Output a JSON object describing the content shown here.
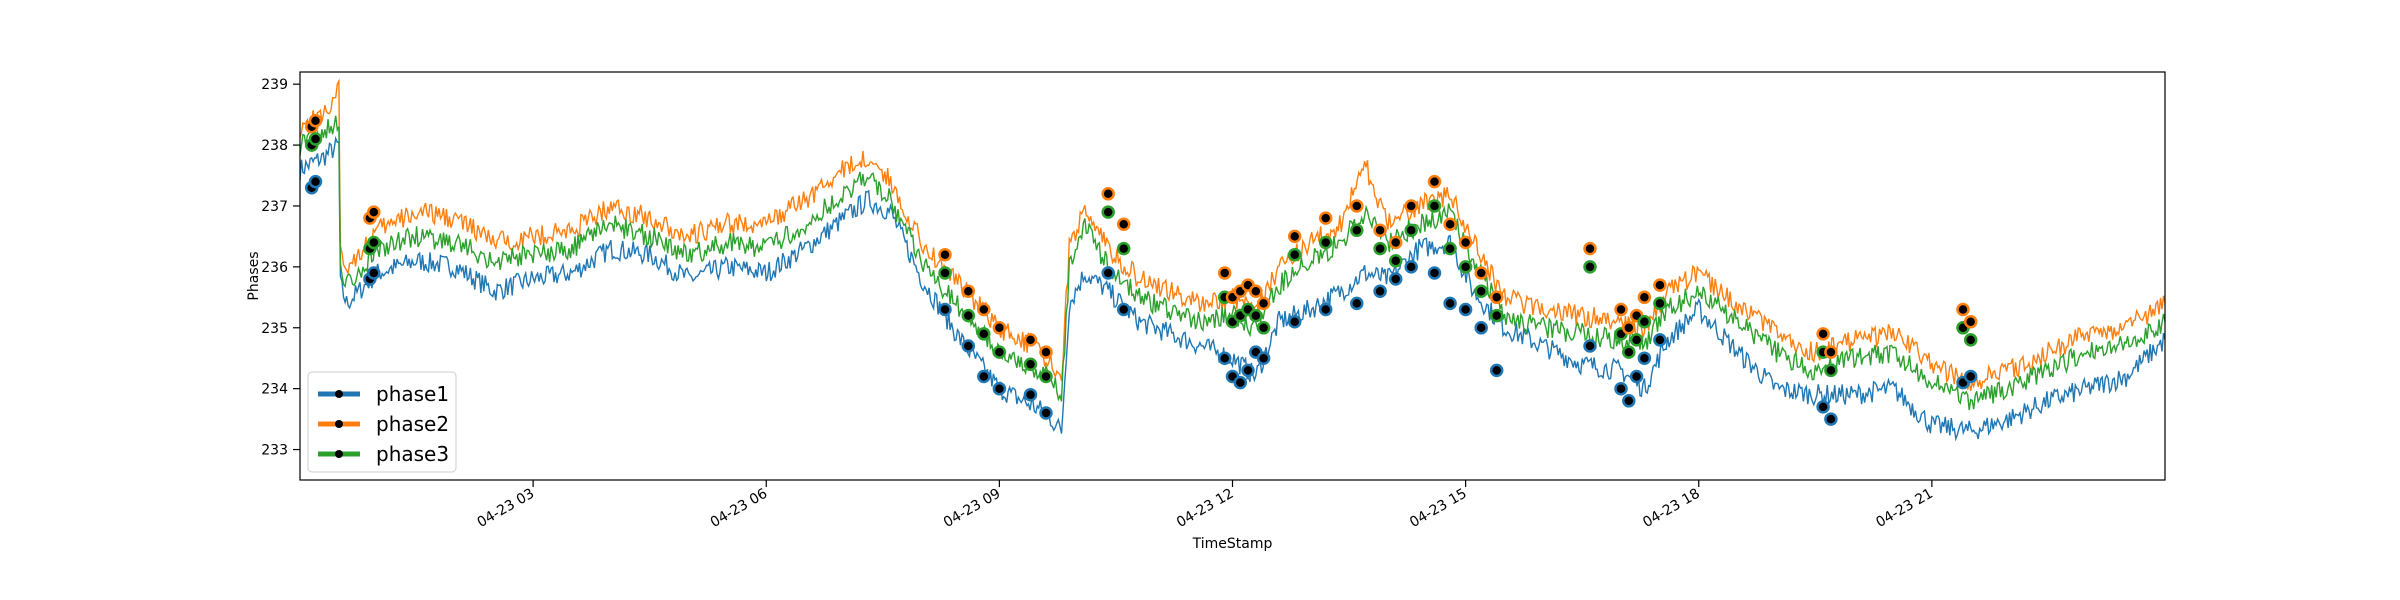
{
  "chart_data": {
    "type": "line",
    "title": "",
    "xlabel": "TimeStamp",
    "ylabel": "Phases",
    "ylim": [
      232.5,
      239.2
    ],
    "xlim_hours": [
      0,
      24
    ],
    "x_tick_labels": [
      "04-23 03",
      "04-23 06",
      "04-23 09",
      "04-23 12",
      "04-23 15",
      "04-23 18",
      "04-23 21"
    ],
    "x_tick_hours": [
      3,
      6,
      9,
      12,
      15,
      18,
      21
    ],
    "y_ticks": [
      233,
      234,
      235,
      236,
      237,
      238,
      239
    ],
    "legend_position": "lower-left",
    "grid": false,
    "series": [
      {
        "name": "phase1",
        "color": "#1f77b4",
        "x_hours": [
          0.0,
          0.3,
          0.5,
          0.52,
          0.6,
          1.0,
          1.5,
          2.0,
          2.5,
          3.0,
          3.5,
          4.0,
          4.5,
          5.0,
          5.5,
          6.0,
          6.5,
          7.0,
          7.3,
          7.6,
          8.0,
          8.5,
          9.0,
          9.3,
          9.6,
          9.8,
          9.9,
          10.1,
          10.4,
          10.8,
          11.2,
          11.6,
          12.0,
          12.3,
          12.6,
          13.0,
          13.4,
          13.7,
          14.0,
          14.4,
          14.8,
          15.1,
          15.5,
          16.0,
          16.5,
          17.0,
          17.3,
          17.6,
          18.0,
          18.5,
          19.0,
          19.5,
          20.0,
          20.5,
          21.0,
          21.5,
          22.0,
          22.5,
          23.0,
          23.5,
          24.0
        ],
        "values": [
          237.6,
          237.8,
          238.0,
          235.7,
          235.4,
          235.9,
          236.1,
          236.0,
          235.6,
          235.8,
          235.9,
          236.3,
          236.2,
          235.8,
          236.0,
          235.9,
          236.3,
          236.8,
          237.1,
          236.9,
          235.8,
          234.8,
          234.0,
          233.8,
          233.6,
          233.3,
          235.4,
          235.9,
          235.6,
          235.1,
          234.9,
          234.7,
          234.5,
          234.2,
          235.1,
          235.3,
          235.6,
          235.9,
          235.8,
          236.3,
          236.4,
          235.6,
          235.0,
          234.7,
          234.4,
          234.3,
          234.0,
          234.8,
          235.3,
          234.6,
          234.0,
          233.9,
          233.9,
          234.0,
          233.4,
          233.3,
          233.5,
          233.8,
          234.0,
          234.2,
          234.8
        ]
      },
      {
        "name": "phase2",
        "color": "#ff7f0e",
        "x_hours": [
          0.0,
          0.3,
          0.5,
          0.52,
          0.6,
          1.0,
          1.5,
          2.0,
          2.5,
          3.0,
          3.5,
          4.0,
          4.5,
          5.0,
          5.5,
          6.0,
          6.5,
          7.0,
          7.3,
          7.6,
          8.0,
          8.5,
          9.0,
          9.3,
          9.6,
          9.8,
          9.9,
          10.1,
          10.4,
          10.8,
          11.2,
          11.6,
          12.0,
          12.3,
          12.6,
          13.0,
          13.4,
          13.7,
          14.0,
          14.4,
          14.8,
          15.1,
          15.5,
          16.0,
          16.5,
          17.0,
          17.3,
          17.6,
          18.0,
          18.5,
          19.0,
          19.5,
          20.0,
          20.5,
          21.0,
          21.5,
          22.0,
          22.5,
          23.0,
          23.5,
          24.0
        ],
        "values": [
          238.3,
          238.5,
          238.9,
          236.2,
          236.0,
          236.6,
          236.9,
          236.8,
          236.4,
          236.5,
          236.6,
          237.0,
          236.8,
          236.5,
          236.7,
          236.7,
          237.1,
          237.6,
          237.8,
          237.4,
          236.4,
          235.7,
          235.0,
          234.8,
          234.5,
          234.2,
          236.3,
          237.0,
          236.3,
          235.8,
          235.6,
          235.4,
          235.5,
          235.3,
          236.0,
          236.4,
          236.7,
          237.7,
          236.7,
          237.0,
          237.2,
          236.4,
          235.5,
          235.3,
          235.2,
          235.1,
          235.0,
          235.6,
          235.9,
          235.4,
          234.9,
          234.6,
          234.8,
          234.9,
          234.4,
          234.1,
          234.3,
          234.6,
          234.9,
          235.0,
          235.4
        ]
      },
      {
        "name": "phase3",
        "color": "#2ca02c",
        "x_hours": [
          0.0,
          0.3,
          0.5,
          0.52,
          0.6,
          1.0,
          1.5,
          2.0,
          2.5,
          3.0,
          3.5,
          4.0,
          4.5,
          5.0,
          5.5,
          6.0,
          6.5,
          7.0,
          7.3,
          7.6,
          8.0,
          8.5,
          9.0,
          9.3,
          9.6,
          9.8,
          9.9,
          10.1,
          10.4,
          10.8,
          11.2,
          11.6,
          12.0,
          12.3,
          12.6,
          13.0,
          13.4,
          13.7,
          14.0,
          14.4,
          14.8,
          15.1,
          15.5,
          16.0,
          16.5,
          17.0,
          17.3,
          17.6,
          18.0,
          18.5,
          19.0,
          19.5,
          20.0,
          20.5,
          21.0,
          21.5,
          22.0,
          22.5,
          23.0,
          23.5,
          24.0
        ],
        "values": [
          238.0,
          238.2,
          238.4,
          235.9,
          235.7,
          236.3,
          236.5,
          236.4,
          236.1,
          236.2,
          236.3,
          236.7,
          236.5,
          236.2,
          236.4,
          236.3,
          236.7,
          237.2,
          237.5,
          237.1,
          236.1,
          235.3,
          234.6,
          234.4,
          234.2,
          233.9,
          236.0,
          236.7,
          236.0,
          235.5,
          235.3,
          235.1,
          235.2,
          235.0,
          235.7,
          236.1,
          236.4,
          236.9,
          236.4,
          236.7,
          236.9,
          236.1,
          235.2,
          235.0,
          234.9,
          234.8,
          234.7,
          235.3,
          235.6,
          235.1,
          234.6,
          234.3,
          234.5,
          234.6,
          234.1,
          233.8,
          234.0,
          234.3,
          234.6,
          234.7,
          235.1
        ]
      }
    ],
    "marker_clusters": [
      {
        "x_hours": [
          0.15,
          0.2,
          0.9,
          0.95
        ],
        "phase1": [
          237.3,
          237.4,
          235.8,
          235.9
        ],
        "phase2": [
          238.3,
          238.4,
          236.8,
          236.9
        ],
        "phase3": [
          238.0,
          238.1,
          236.3,
          236.4
        ]
      },
      {
        "x_hours": [
          8.3,
          8.6,
          8.8,
          9.0,
          9.4,
          9.6
        ],
        "phase1": [
          235.3,
          234.7,
          234.2,
          234.0,
          233.9,
          233.6
        ],
        "phase2": [
          236.2,
          235.6,
          235.3,
          235.0,
          234.8,
          234.6
        ],
        "phase3": [
          235.9,
          235.2,
          234.9,
          234.6,
          234.4,
          234.2
        ]
      },
      {
        "x_hours": [
          10.4,
          10.6
        ],
        "phase1": [
          235.9,
          235.3
        ],
        "phase2": [
          237.2,
          236.7
        ],
        "phase3": [
          236.9,
          236.3
        ]
      },
      {
        "x_hours": [
          11.9,
          12.0,
          12.1,
          12.2,
          12.3,
          12.4
        ],
        "phase1": [
          234.5,
          234.2,
          234.1,
          234.3,
          234.6,
          234.5
        ],
        "phase2": [
          235.9,
          235.5,
          235.6,
          235.7,
          235.6,
          235.4
        ],
        "phase3": [
          235.5,
          235.1,
          235.2,
          235.3,
          235.2,
          235.0
        ]
      },
      {
        "x_hours": [
          12.8,
          13.2,
          13.6,
          13.9,
          14.1,
          14.3,
          14.6,
          14.8,
          15.0,
          15.2
        ],
        "phase1": [
          235.1,
          235.3,
          235.4,
          235.6,
          235.8,
          236.0,
          235.9,
          235.4,
          235.3,
          235.0
        ],
        "phase2": [
          236.5,
          236.8,
          237.0,
          236.6,
          236.4,
          237.0,
          237.4,
          236.7,
          236.4,
          235.9
        ],
        "phase3": [
          236.2,
          236.4,
          236.6,
          236.3,
          236.1,
          236.6,
          237.0,
          236.3,
          236.0,
          235.6
        ]
      },
      {
        "x_hours": [
          15.4,
          16.6
        ],
        "phase1": [
          234.3,
          234.7
        ],
        "phase2": [
          235.5,
          236.3
        ],
        "phase3": [
          235.2,
          236.0
        ]
      },
      {
        "x_hours": [
          17.0,
          17.1,
          17.2,
          17.3,
          17.5
        ],
        "phase1": [
          234.0,
          233.8,
          234.2,
          234.5,
          234.8
        ],
        "phase2": [
          235.3,
          235.0,
          235.2,
          235.5,
          235.7
        ],
        "phase3": [
          234.9,
          234.6,
          234.8,
          235.1,
          235.4
        ]
      },
      {
        "x_hours": [
          19.6,
          19.7,
          21.4,
          21.5
        ],
        "phase1": [
          233.7,
          233.5,
          234.1,
          234.2
        ],
        "phase2": [
          234.9,
          234.6,
          235.3,
          235.1
        ],
        "phase3": [
          234.6,
          234.3,
          235.0,
          234.8
        ]
      }
    ]
  }
}
